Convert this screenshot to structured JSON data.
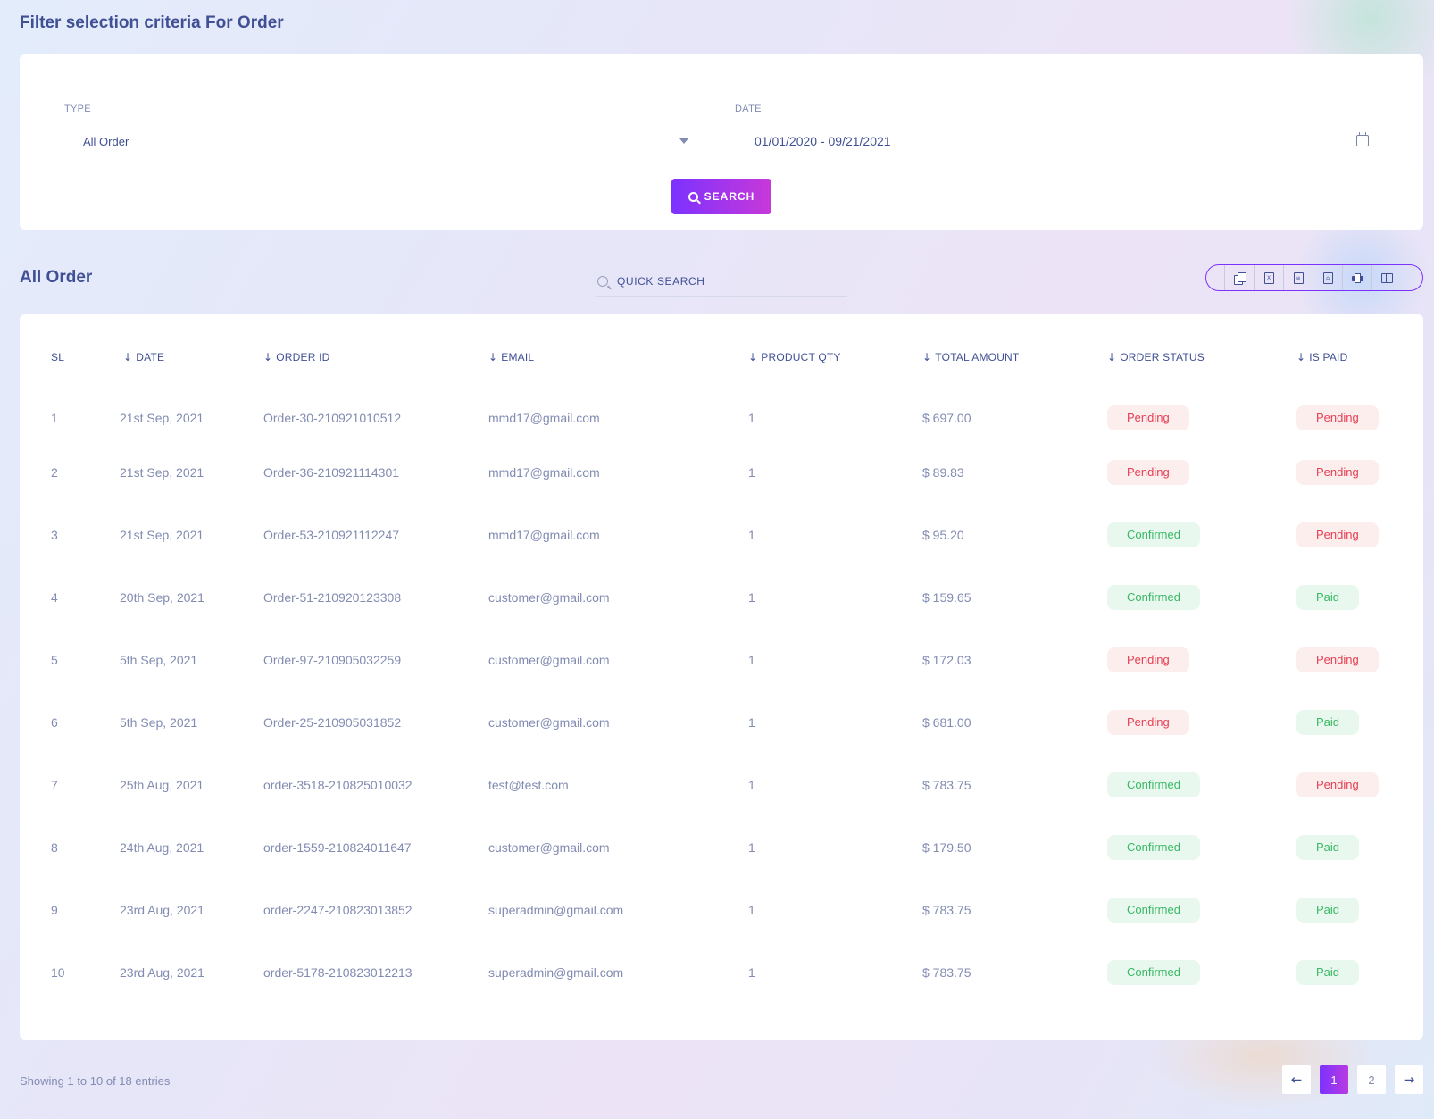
{
  "filter": {
    "title": "Filter selection criteria For Order",
    "type_label": "TYPE",
    "type_value": "All Order",
    "date_label": "DATE",
    "date_value": "01/01/2020 - 09/21/2021",
    "search_label": "SEARCH"
  },
  "list": {
    "title": "All Order",
    "quick_search_placeholder": "QUICK SEARCH"
  },
  "export_icons": [
    "copy-icon",
    "excel-icon",
    "csv-icon",
    "pdf-icon",
    "print-icon",
    "columns-icon"
  ],
  "table": {
    "headers": {
      "sl": "SL",
      "date": "DATE",
      "order_id": "ORDER ID",
      "email": "EMAIL",
      "qty": "PRODUCT QTY",
      "amount": "TOTAL AMOUNT",
      "status": "ORDER STATUS",
      "paid": "IS PAID"
    },
    "rows": [
      {
        "sl": "1",
        "date": "21st Sep, 2021",
        "order_id": "Order-30-210921010512",
        "email": "mmd17@gmail.com",
        "qty": "1",
        "amount": "$ 697.00",
        "status": "Pending",
        "paid": "Pending"
      },
      {
        "sl": "2",
        "date": "21st Sep, 2021",
        "order_id": "Order-36-210921114301",
        "email": "mmd17@gmail.com",
        "qty": "1",
        "amount": "$ 89.83",
        "status": "Pending",
        "paid": "Pending"
      },
      {
        "sl": "3",
        "date": "21st Sep, 2021",
        "order_id": "Order-53-210921112247",
        "email": "mmd17@gmail.com",
        "qty": "1",
        "amount": "$ 95.20",
        "status": "Confirmed",
        "paid": "Pending"
      },
      {
        "sl": "4",
        "date": "20th Sep, 2021",
        "order_id": "Order-51-210920123308",
        "email": "customer@gmail.com",
        "qty": "1",
        "amount": "$ 159.65",
        "status": "Confirmed",
        "paid": "Paid"
      },
      {
        "sl": "5",
        "date": "5th Sep, 2021",
        "order_id": "Order-97-210905032259",
        "email": "customer@gmail.com",
        "qty": "1",
        "amount": "$ 172.03",
        "status": "Pending",
        "paid": "Pending"
      },
      {
        "sl": "6",
        "date": "5th Sep, 2021",
        "order_id": "Order-25-210905031852",
        "email": "customer@gmail.com",
        "qty": "1",
        "amount": "$ 681.00",
        "status": "Pending",
        "paid": "Paid"
      },
      {
        "sl": "7",
        "date": "25th Aug, 2021",
        "order_id": "order-3518-210825010032",
        "email": "test@test.com",
        "qty": "1",
        "amount": "$ 783.75",
        "status": "Confirmed",
        "paid": "Pending"
      },
      {
        "sl": "8",
        "date": "24th Aug, 2021",
        "order_id": "order-1559-210824011647",
        "email": "customer@gmail.com",
        "qty": "1",
        "amount": "$ 179.50",
        "status": "Confirmed",
        "paid": "Paid"
      },
      {
        "sl": "9",
        "date": "23rd Aug, 2021",
        "order_id": "order-2247-210823013852",
        "email": "superadmin@gmail.com",
        "qty": "1",
        "amount": "$ 783.75",
        "status": "Confirmed",
        "paid": "Paid"
      },
      {
        "sl": "10",
        "date": "23rd Aug, 2021",
        "order_id": "order-5178-210823012213",
        "email": "superadmin@gmail.com",
        "qty": "1",
        "amount": "$ 783.75",
        "status": "Confirmed",
        "paid": "Paid"
      }
    ]
  },
  "pagination": {
    "showing": "Showing 1 to 10 of 18 entries",
    "pages": [
      "1",
      "2"
    ],
    "current": "1",
    "prev_icon": "arrow-left-icon",
    "next_icon": "arrow-right-icon"
  },
  "colors": {
    "accent_start": "#7c32ff",
    "accent_end": "#c738d8",
    "pending_text": "#e53f53",
    "pending_bg": "#fdeeee",
    "ok_text": "#38b865",
    "ok_bg": "#e9f8ee"
  }
}
